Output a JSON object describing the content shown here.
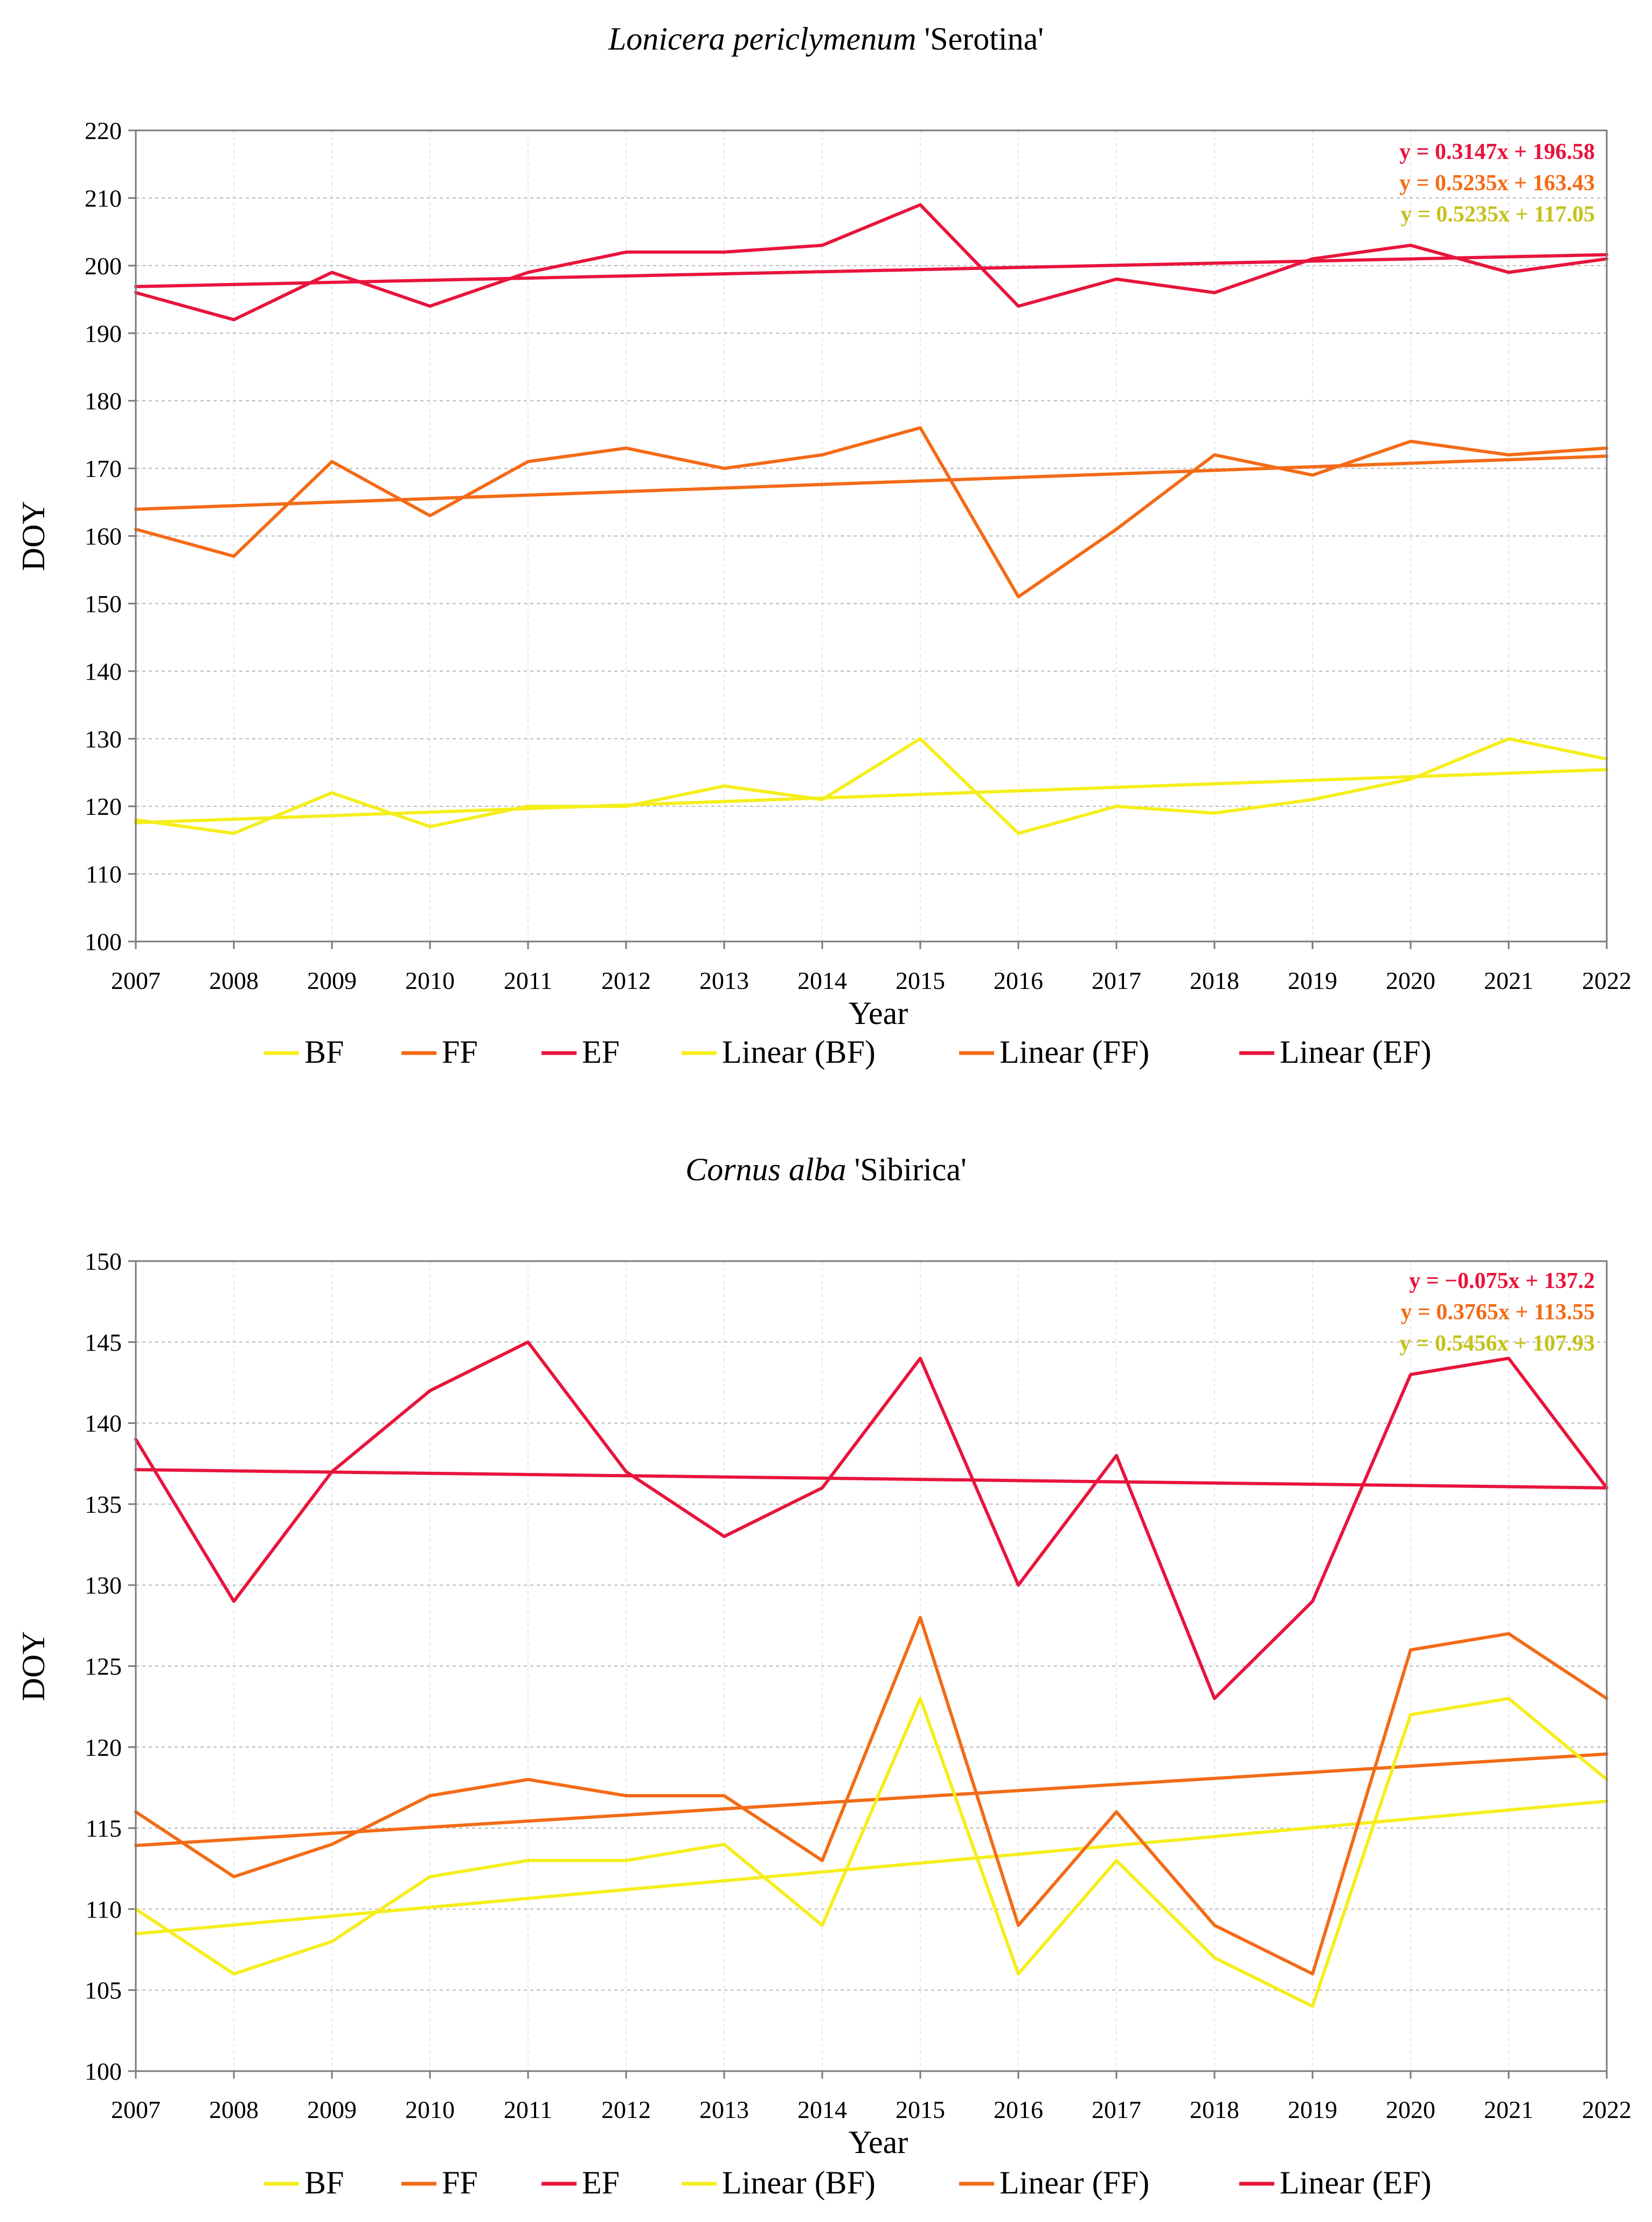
{
  "chart_data": [
    {
      "type": "line",
      "title_italic": "Lonicera periclymenum",
      "title_rest": " 'Serotina'",
      "xlabel": "Year",
      "ylabel": "DOY",
      "ylim": [
        100,
        220
      ],
      "ystep": 10,
      "x": [
        2007,
        2008,
        2009,
        2010,
        2011,
        2012,
        2013,
        2014,
        2015,
        2016,
        2017,
        2018,
        2019,
        2020,
        2021,
        2022
      ],
      "series": [
        {
          "name": "BF",
          "color": "#f5ee1c",
          "values": [
            118,
            116,
            122,
            117,
            120,
            120,
            123,
            121,
            130,
            116,
            120,
            119,
            121,
            124,
            130,
            127
          ]
        },
        {
          "name": "FF",
          "color": "#f36b16",
          "values": [
            161,
            157,
            171,
            163,
            171,
            173,
            170,
            172,
            176,
            151,
            161,
            172,
            169,
            174,
            172,
            173
          ]
        },
        {
          "name": "EF",
          "color": "#e8143c",
          "values": [
            196,
            192,
            199,
            194,
            199,
            202,
            202,
            203,
            209,
            194,
            198,
            196,
            201,
            203,
            199,
            201
          ]
        }
      ],
      "trendlines": [
        {
          "name": "Linear (BF)",
          "color": "#f5ee1c",
          "slope": 0.5235,
          "intercept": 117.05
        },
        {
          "name": "Linear (FF)",
          "color": "#f36b16",
          "slope": 0.5235,
          "intercept": 163.43
        },
        {
          "name": "Linear (EF)",
          "color": "#e8143c",
          "slope": 0.3147,
          "intercept": 196.58
        }
      ],
      "equations": [
        {
          "text": "y = 0.3147x + 196.58",
          "color": "#e8143c"
        },
        {
          "text": "y = 0.5235x + 163.43",
          "color": "#f36b16"
        },
        {
          "text": "y = 0.5235x + 117.05",
          "color": "#c4c21a"
        }
      ],
      "legend": [
        "BF",
        "FF",
        "EF",
        "Linear (BF)",
        "Linear (FF)",
        "Linear (EF)"
      ]
    },
    {
      "type": "line",
      "title_italic": "Cornus alba",
      "title_rest": " 'Sibirica'",
      "xlabel": "Year",
      "ylabel": "DOY",
      "ylim": [
        100,
        150
      ],
      "ystep": 5,
      "x": [
        2007,
        2008,
        2009,
        2010,
        2011,
        2012,
        2013,
        2014,
        2015,
        2016,
        2017,
        2018,
        2019,
        2020,
        2021,
        2022
      ],
      "series": [
        {
          "name": "BF",
          "color": "#f5ee1c",
          "values": [
            110,
            106,
            108,
            112,
            113,
            113,
            114,
            109,
            123,
            106,
            113,
            107,
            104,
            122,
            123,
            118
          ]
        },
        {
          "name": "FF",
          "color": "#f36b16",
          "values": [
            116,
            112,
            114,
            117,
            118,
            117,
            117,
            113,
            128,
            109,
            116,
            109,
            106,
            126,
            127,
            123
          ]
        },
        {
          "name": "EF",
          "color": "#e8143c",
          "values": [
            139,
            129,
            137,
            142,
            145,
            137,
            133,
            136,
            144,
            130,
            138,
            123,
            129,
            143,
            144,
            136
          ]
        }
      ],
      "trendlines": [
        {
          "name": "Linear (BF)",
          "color": "#f5ee1c",
          "slope": 0.5456,
          "intercept": 107.93
        },
        {
          "name": "Linear (FF)",
          "color": "#f36b16",
          "slope": 0.3765,
          "intercept": 113.55
        },
        {
          "name": "Linear (EF)",
          "color": "#e8143c",
          "slope": -0.075,
          "intercept": 137.2
        }
      ],
      "equations": [
        {
          "text": "y = −0.075x + 137.2",
          "color": "#e8143c"
        },
        {
          "text": "y = 0.3765x + 113.55",
          "color": "#f36b16"
        },
        {
          "text": "y = 0.5456x + 107.93",
          "color": "#c4c21a"
        }
      ],
      "legend": [
        "BF",
        "FF",
        "EF",
        "Linear (BF)",
        "Linear (FF)",
        "Linear (EF)"
      ]
    }
  ]
}
